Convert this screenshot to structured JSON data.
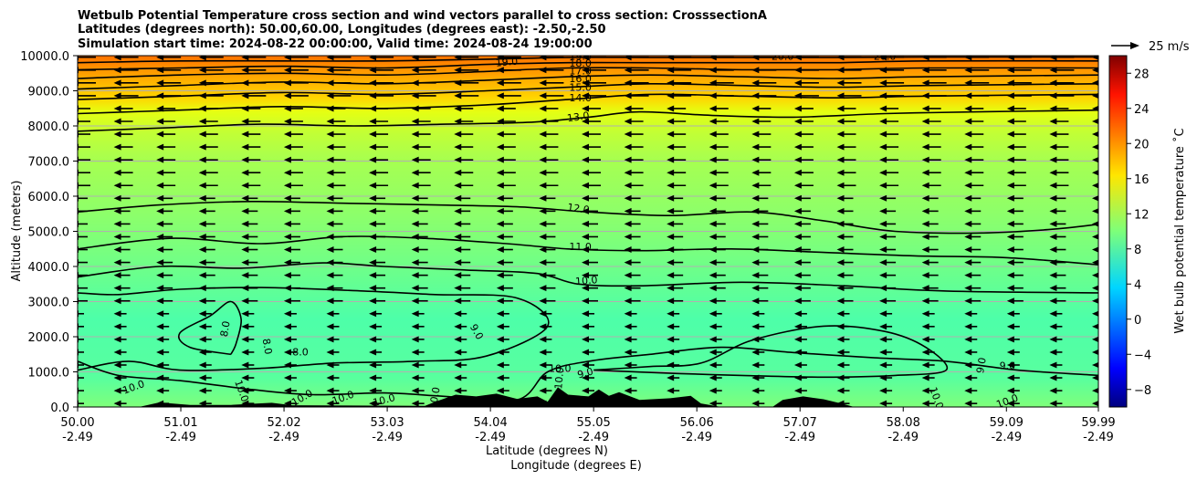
{
  "chart_data": {
    "type": "contour",
    "title_lines": [
      "Wetbulb Potential Temperature cross section and wind vectors parallel to cross section: CrosssectionA",
      "Latitudes (degrees north): 50.00,60.00, Longitudes (degrees east): -2.50,-2.50",
      "Simulation start time: 2024-08-22 00:00:00, Valid time: 2024-08-24 19:00:00"
    ],
    "xlabel_lines": [
      "Latitude (degrees N)",
      "Longitude (degrees E)"
    ],
    "ylabel": "Altitude (meters)",
    "xlim": [
      50.0,
      59.99
    ],
    "ylim": [
      0,
      10000
    ],
    "x_ticks": [
      {
        "lat": "50.00",
        "lon": "-2.49",
        "value": 50.0
      },
      {
        "lat": "51.01",
        "lon": "-2.49",
        "value": 51.01
      },
      {
        "lat": "52.02",
        "lon": "-2.49",
        "value": 52.02
      },
      {
        "lat": "53.03",
        "lon": "-2.49",
        "value": 53.03
      },
      {
        "lat": "54.04",
        "lon": "-2.49",
        "value": 54.04
      },
      {
        "lat": "55.05",
        "lon": "-2.49",
        "value": 55.05
      },
      {
        "lat": "56.06",
        "lon": "-2.49",
        "value": 56.06
      },
      {
        "lat": "57.07",
        "lon": "-2.49",
        "value": 57.07
      },
      {
        "lat": "58.08",
        "lon": "-2.49",
        "value": 58.08
      },
      {
        "lat": "59.09",
        "lon": "-2.49",
        "value": 59.09
      },
      {
        "lat": "59.99",
        "lon": "-2.49",
        "value": 59.99
      }
    ],
    "y_ticks": [
      "0.0",
      "1000.0",
      "2000.0",
      "3000.0",
      "4000.0",
      "5000.0",
      "6000.0",
      "7000.0",
      "8000.0",
      "9000.0",
      "10000.0"
    ],
    "y_tick_values": [
      0,
      1000,
      2000,
      3000,
      4000,
      5000,
      6000,
      7000,
      8000,
      9000,
      10000
    ],
    "grid": "horizontal",
    "colorbar": {
      "label": "Wet bulb potential temperature ˚C",
      "ticks": [
        "−8",
        "−4",
        "0",
        "4",
        "8",
        "12",
        "16",
        "20",
        "24",
        "28"
      ],
      "tick_values": [
        -8,
        -4,
        0,
        4,
        8,
        12,
        16,
        20,
        24,
        28
      ],
      "range": [
        -10,
        30
      ],
      "colormap": "jet"
    },
    "quiver_key": "25 m/s",
    "wind_direction": "toward decreasing latitude",
    "contour_lines": [
      {
        "value": 8,
        "label": "8.0",
        "points": [
          [
            51.5,
            1500
          ],
          [
            51.1,
            1700
          ],
          [
            51.0,
            2100
          ],
          [
            51.3,
            2600
          ],
          [
            51.5,
            3000
          ],
          [
            51.6,
            2500
          ],
          [
            51.55,
            1800
          ],
          [
            51.5,
            1500
          ]
        ]
      },
      {
        "value": 9,
        "label": "9.0",
        "points": [
          [
            50.0,
            1050
          ],
          [
            50.5,
            1300
          ],
          [
            51.0,
            1050
          ],
          [
            51.8,
            1100
          ],
          [
            52.5,
            1250
          ],
          [
            53.3,
            1300
          ],
          [
            54.0,
            1450
          ],
          [
            54.6,
            2300
          ],
          [
            54.3,
            3100
          ],
          [
            53.5,
            3200
          ],
          [
            52.8,
            3300
          ],
          [
            51.8,
            3400
          ],
          [
            51.0,
            3350
          ],
          [
            50.4,
            3200
          ],
          [
            50.0,
            3250
          ]
        ]
      },
      {
        "value": 9,
        "label": "9.0",
        "points": [
          [
            55.05,
            1050
          ],
          [
            55.6,
            1150
          ],
          [
            56.1,
            1250
          ],
          [
            56.6,
            1900
          ],
          [
            57.3,
            2300
          ],
          [
            57.9,
            2150
          ],
          [
            58.3,
            1700
          ],
          [
            58.5,
            1050
          ],
          [
            58.0,
            900
          ],
          [
            57.3,
            850
          ],
          [
            56.5,
            900
          ],
          [
            55.9,
            950
          ],
          [
            55.05,
            1050
          ]
        ]
      },
      {
        "value": 10,
        "label": "10.0",
        "points": [
          [
            50.0,
            3700
          ],
          [
            50.8,
            4000
          ],
          [
            51.6,
            3950
          ],
          [
            52.4,
            4100
          ],
          [
            53.0,
            4000
          ],
          [
            53.8,
            3900
          ],
          [
            54.5,
            3800
          ],
          [
            54.9,
            3500
          ],
          [
            55.5,
            3450
          ],
          [
            56.5,
            3550
          ],
          [
            57.5,
            3450
          ],
          [
            58.5,
            3300
          ],
          [
            59.99,
            3250
          ]
        ]
      },
      {
        "value": 10,
        "label": "10.0",
        "points": [
          [
            50.0,
            1300
          ],
          [
            50.4,
            900
          ],
          [
            51.0,
            750
          ],
          [
            51.7,
            500
          ],
          [
            52.3,
            350
          ],
          [
            53.0,
            400
          ],
          [
            53.6,
            300
          ],
          [
            54.3,
            200
          ],
          [
            54.6,
            1000
          ],
          [
            55.0,
            1300
          ],
          [
            55.6,
            1500
          ],
          [
            56.3,
            1700
          ],
          [
            57.0,
            1550
          ],
          [
            57.8,
            1400
          ],
          [
            58.5,
            1300
          ],
          [
            59.2,
            1050
          ],
          [
            59.99,
            900
          ]
        ]
      },
      {
        "value": 11,
        "label": "11.0",
        "points": [
          [
            50.0,
            4500
          ],
          [
            50.9,
            4800
          ],
          [
            51.8,
            4650
          ],
          [
            52.6,
            4850
          ],
          [
            53.4,
            4800
          ],
          [
            54.2,
            4650
          ],
          [
            54.8,
            4500
          ],
          [
            55.5,
            4450
          ],
          [
            56.4,
            4500
          ],
          [
            57.3,
            4400
          ],
          [
            58.2,
            4300
          ],
          [
            59.1,
            4250
          ],
          [
            59.99,
            4050
          ]
        ]
      },
      {
        "value": 12,
        "label": "12.0",
        "points": [
          [
            50.0,
            5550
          ],
          [
            50.8,
            5750
          ],
          [
            51.7,
            5850
          ],
          [
            52.6,
            5800
          ],
          [
            53.5,
            5750
          ],
          [
            54.3,
            5700
          ],
          [
            55.0,
            5550
          ],
          [
            55.8,
            5450
          ],
          [
            56.6,
            5550
          ],
          [
            57.3,
            5300
          ],
          [
            58.0,
            5000
          ],
          [
            58.8,
            4950
          ],
          [
            59.5,
            5050
          ],
          [
            59.99,
            5200
          ]
        ]
      },
      {
        "value": 13,
        "label": "13.0",
        "points": [
          [
            50.0,
            7850
          ],
          [
            50.9,
            7950
          ],
          [
            51.8,
            8050
          ],
          [
            52.7,
            8000
          ],
          [
            53.6,
            8050
          ],
          [
            54.4,
            8100
          ],
          [
            55.0,
            8250
          ],
          [
            55.5,
            8400
          ],
          [
            56.2,
            8300
          ],
          [
            57.0,
            8250
          ],
          [
            57.9,
            8350
          ],
          [
            58.8,
            8400
          ],
          [
            59.99,
            8450
          ]
        ]
      },
      {
        "value": 14,
        "label": "14.0",
        "points": [
          [
            50.0,
            8350
          ],
          [
            51.0,
            8450
          ],
          [
            52.0,
            8550
          ],
          [
            53.0,
            8500
          ],
          [
            54.0,
            8600
          ],
          [
            54.8,
            8750
          ],
          [
            55.6,
            8900
          ],
          [
            56.5,
            8850
          ],
          [
            57.4,
            8800
          ],
          [
            58.3,
            8850
          ],
          [
            59.99,
            8900
          ]
        ]
      },
      {
        "value": 15,
        "label": "15.0",
        "points": [
          [
            50.0,
            8750
          ],
          [
            51.0,
            8850
          ],
          [
            52.0,
            8950
          ],
          [
            53.0,
            8900
          ],
          [
            54.0,
            9000
          ],
          [
            54.8,
            9100
          ],
          [
            55.6,
            9200
          ],
          [
            56.5,
            9150
          ],
          [
            57.4,
            9100
          ],
          [
            58.3,
            9150
          ],
          [
            59.99,
            9200
          ]
        ]
      },
      {
        "value": 16,
        "label": "16.0",
        "points": [
          [
            50.0,
            9050
          ],
          [
            51.0,
            9150
          ],
          [
            52.0,
            9250
          ],
          [
            53.0,
            9200
          ],
          [
            54.0,
            9300
          ],
          [
            54.8,
            9400
          ],
          [
            55.6,
            9450
          ],
          [
            56.5,
            9400
          ],
          [
            57.4,
            9350
          ],
          [
            58.3,
            9400
          ],
          [
            59.99,
            9450
          ]
        ]
      },
      {
        "value": 17,
        "label": "17.0",
        "points": [
          [
            50.0,
            9350
          ],
          [
            51.0,
            9450
          ],
          [
            52.0,
            9500
          ],
          [
            53.0,
            9450
          ],
          [
            54.0,
            9550
          ],
          [
            54.8,
            9650
          ],
          [
            55.6,
            9650
          ],
          [
            56.5,
            9600
          ],
          [
            57.4,
            9600
          ],
          [
            58.3,
            9650
          ],
          [
            59.99,
            9650
          ]
        ]
      },
      {
        "value": 18,
        "label": "18.0",
        "points": [
          [
            50.0,
            9600
          ],
          [
            51.0,
            9650
          ],
          [
            52.0,
            9700
          ],
          [
            53.0,
            9650
          ],
          [
            54.0,
            9750
          ],
          [
            54.8,
            9800
          ],
          [
            55.6,
            9800
          ],
          [
            56.5,
            9800
          ],
          [
            57.4,
            9800
          ],
          [
            58.3,
            9850
          ],
          [
            59.99,
            9850
          ]
        ]
      },
      {
        "value": 19,
        "label": "19.0",
        "points": [
          [
            50.0,
            9800
          ],
          [
            51.0,
            9850
          ],
          [
            52.0,
            9850
          ],
          [
            53.0,
            9850
          ],
          [
            54.0,
            9900
          ],
          [
            54.8,
            9950
          ],
          [
            55.6,
            9950
          ],
          [
            56.5,
            9950
          ],
          [
            57.4,
            9950
          ],
          [
            58.3,
            9960
          ],
          [
            59.99,
            9960
          ]
        ]
      }
    ],
    "contour_label_texts": [
      {
        "text": "19.0",
        "lat": 54.2,
        "alt": 9800,
        "rot": -5
      },
      {
        "text": "19.0",
        "lat": 54.92,
        "alt": 9960,
        "rot": 0
      },
      {
        "text": "18.0",
        "lat": 54.92,
        "alt": 9760,
        "rot": 0
      },
      {
        "text": "17.0",
        "lat": 54.92,
        "alt": 9540,
        "rot": 0
      },
      {
        "text": "16.0",
        "lat": 54.92,
        "alt": 9330,
        "rot": 0
      },
      {
        "text": "15.0",
        "lat": 54.92,
        "alt": 9080,
        "rot": 0
      },
      {
        "text": "14.0",
        "lat": 54.92,
        "alt": 8780,
        "rot": 0
      },
      {
        "text": "13.0",
        "lat": 54.9,
        "alt": 8240,
        "rot": -8
      },
      {
        "text": "12.0",
        "lat": 54.9,
        "alt": 5630,
        "rot": 8
      },
      {
        "text": "11.0",
        "lat": 54.92,
        "alt": 4550,
        "rot": 0
      },
      {
        "text": "10.0",
        "lat": 54.98,
        "alt": 3580,
        "rot": -5
      },
      {
        "text": "9.0",
        "lat": 53.9,
        "alt": 2130,
        "rot": 60
      },
      {
        "text": "8.0",
        "lat": 51.45,
        "alt": 2220,
        "rot": -80
      },
      {
        "text": "8.0",
        "lat": 51.85,
        "alt": 1720,
        "rot": 80
      },
      {
        "text": "8.0",
        "lat": 52.18,
        "alt": 1550,
        "rot": 0
      },
      {
        "text": "10.0",
        "lat": 54.72,
        "alt": 1080,
        "rot": 0
      },
      {
        "text": "10.0",
        "lat": 54.72,
        "alt": 820,
        "rot": -85
      },
      {
        "text": "9.0",
        "lat": 54.97,
        "alt": 950,
        "rot": -15
      },
      {
        "text": "9.0",
        "lat": 59.1,
        "alt": 1150,
        "rot": 0
      },
      {
        "text": "9.0",
        "lat": 58.85,
        "alt": 1180,
        "rot": -80
      },
      {
        "text": "10.0",
        "lat": 50.55,
        "alt": 550,
        "rot": -20
      },
      {
        "text": "10.0",
        "lat": 51.6,
        "alt": 450,
        "rot": 70
      },
      {
        "text": "10.0",
        "lat": 52.2,
        "alt": 250,
        "rot": -30
      },
      {
        "text": "10.0",
        "lat": 52.6,
        "alt": 250,
        "rot": -20
      },
      {
        "text": "10.0",
        "lat": 53.0,
        "alt": 180,
        "rot": -15
      },
      {
        "text": "10.0",
        "lat": 53.5,
        "alt": 250,
        "rot": -80
      },
      {
        "text": "10.0",
        "lat": 54.2,
        "alt": 100,
        "rot": 0
      },
      {
        "text": "10.0",
        "lat": 59.1,
        "alt": 150,
        "rot": -20
      },
      {
        "text": "10.0",
        "lat": 58.4,
        "alt": 250,
        "rot": 70
      },
      {
        "text": "20.0",
        "lat": 56.9,
        "alt": 9960,
        "rot": 0
      },
      {
        "text": "20.0",
        "lat": 57.9,
        "alt": 9960,
        "rot": 0
      }
    ],
    "terrain": [
      [
        50.0,
        0
      ],
      [
        50.6,
        0
      ],
      [
        50.8,
        130
      ],
      [
        51.1,
        60
      ],
      [
        51.5,
        60
      ],
      [
        51.9,
        120
      ],
      [
        52.1,
        50
      ],
      [
        53.4,
        30
      ],
      [
        53.5,
        150
      ],
      [
        53.7,
        350
      ],
      [
        53.9,
        300
      ],
      [
        54.1,
        380
      ],
      [
        54.3,
        230
      ],
      [
        54.5,
        300
      ],
      [
        54.6,
        150
      ],
      [
        54.7,
        560
      ],
      [
        54.8,
        350
      ],
      [
        55.0,
        300
      ],
      [
        55.1,
        500
      ],
      [
        55.2,
        320
      ],
      [
        55.3,
        420
      ],
      [
        55.5,
        200
      ],
      [
        55.8,
        250
      ],
      [
        56.0,
        320
      ],
      [
        56.1,
        100
      ],
      [
        56.3,
        0
      ],
      [
        56.8,
        0
      ],
      [
        56.9,
        200
      ],
      [
        57.1,
        300
      ],
      [
        57.3,
        220
      ],
      [
        57.5,
        80
      ],
      [
        57.6,
        0
      ],
      [
        59.99,
        0
      ]
    ]
  }
}
